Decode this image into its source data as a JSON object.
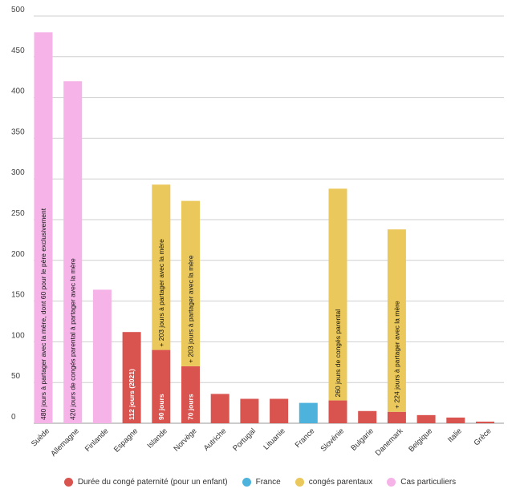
{
  "chart_data": {
    "type": "bar",
    "ylim": [
      0,
      500
    ],
    "yticks": [
      0,
      50,
      100,
      150,
      200,
      250,
      300,
      350,
      400,
      450,
      500
    ],
    "grid": true,
    "categories": [
      "Suède",
      "Allemagne",
      "Finlande",
      "Espagne",
      "Islande",
      "Norvège",
      "Autriche",
      "Portugal",
      "Lituanie",
      "France",
      "Slovénie",
      "Bulgarie",
      "Danemark",
      "Belgique",
      "Italie",
      "Grèce"
    ],
    "series": [
      {
        "name": "Durée du congé paternité (pour un enfant)",
        "color": "#d9534f",
        "values": [
          0,
          0,
          0,
          112,
          90,
          70,
          36,
          30,
          30,
          0,
          28,
          15,
          14,
          10,
          7,
          2
        ]
      },
      {
        "name": "France",
        "color": "#4db3dc",
        "values": [
          0,
          0,
          0,
          0,
          0,
          0,
          0,
          0,
          0,
          25,
          0,
          0,
          0,
          0,
          0,
          0
        ]
      },
      {
        "name": "congés parentaux",
        "color": "#eac85c",
        "values": [
          0,
          0,
          0,
          0,
          203,
          203,
          0,
          0,
          0,
          0,
          260,
          0,
          224,
          0,
          0,
          0
        ]
      },
      {
        "name": "Cas particuliers",
        "color": "#f5b3e8",
        "values": [
          480,
          420,
          164,
          0,
          0,
          0,
          0,
          0,
          0,
          0,
          0,
          0,
          0,
          0,
          0,
          0
        ]
      }
    ],
    "annotations": [
      {
        "category": "Suède",
        "text": "480 jours à partager avec la mère, dont 60 pour le père exclusivement",
        "series": "Cas particuliers",
        "light": false
      },
      {
        "category": "Allemagne",
        "text": "420 jours de congés parental à partager avec la mère",
        "series": "Cas particuliers",
        "light": false
      },
      {
        "category": "Espagne",
        "text": "112 jours (2021)",
        "series": "Durée du congé paternité (pour un enfant)",
        "light": true
      },
      {
        "category": "Islande",
        "text": "90 jours",
        "series": "Durée du congé paternité (pour un enfant)",
        "light": true
      },
      {
        "category": "Islande",
        "text": "+ 203 jours à partager avec la mère",
        "series": "congés parentaux",
        "light": false
      },
      {
        "category": "Norvège",
        "text": "70 jours",
        "series": "Durée du congé paternité (pour un enfant)",
        "light": true
      },
      {
        "category": "Norvège",
        "text": "+ 203 jours à partager avec la mère",
        "series": "congés parentaux",
        "light": false
      },
      {
        "category": "Slovénie",
        "text": "260 jours de congés parental",
        "series": "congés parentaux",
        "light": false
      },
      {
        "category": "Danemark",
        "text": "+ 224 jours à partager avec la mère",
        "series": "congés parentaux",
        "light": false
      }
    ],
    "legend_position": "bottom"
  }
}
